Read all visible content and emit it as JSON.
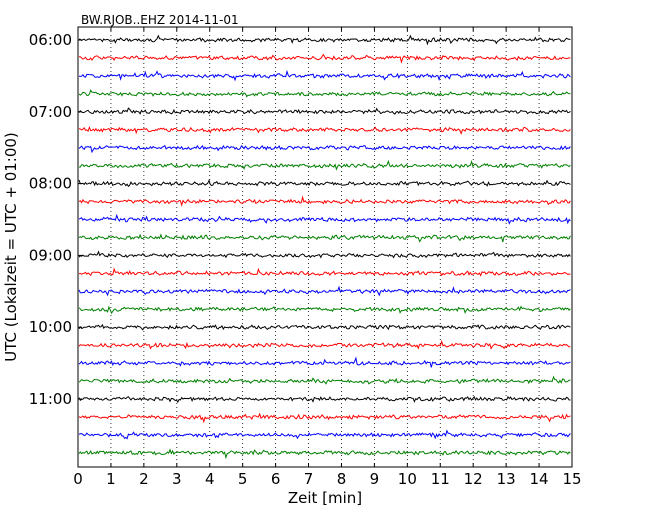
{
  "chart_data": {
    "type": "line",
    "title": "BW.RJOB..EHZ 2014-11-01",
    "xlabel": "Zeit  [min]",
    "ylabel": "UTC (Lokalzeit = UTC + 01:00)",
    "xlim": [
      0,
      15
    ],
    "x_ticks": [
      "0",
      "1",
      "2",
      "3",
      "4",
      "5",
      "6",
      "7",
      "8",
      "9",
      "10",
      "11",
      "12",
      "13",
      "14",
      "15"
    ],
    "y_tick_labels": [
      "06:00",
      "07:00",
      "08:00",
      "09:00",
      "10:00",
      "11:00"
    ],
    "trace_count": 24,
    "trace_interval_minutes": 15,
    "trace_colors": [
      "#000000",
      "#ff0000",
      "#0000ff",
      "#008000"
    ],
    "grid": "vertical dotted"
  }
}
